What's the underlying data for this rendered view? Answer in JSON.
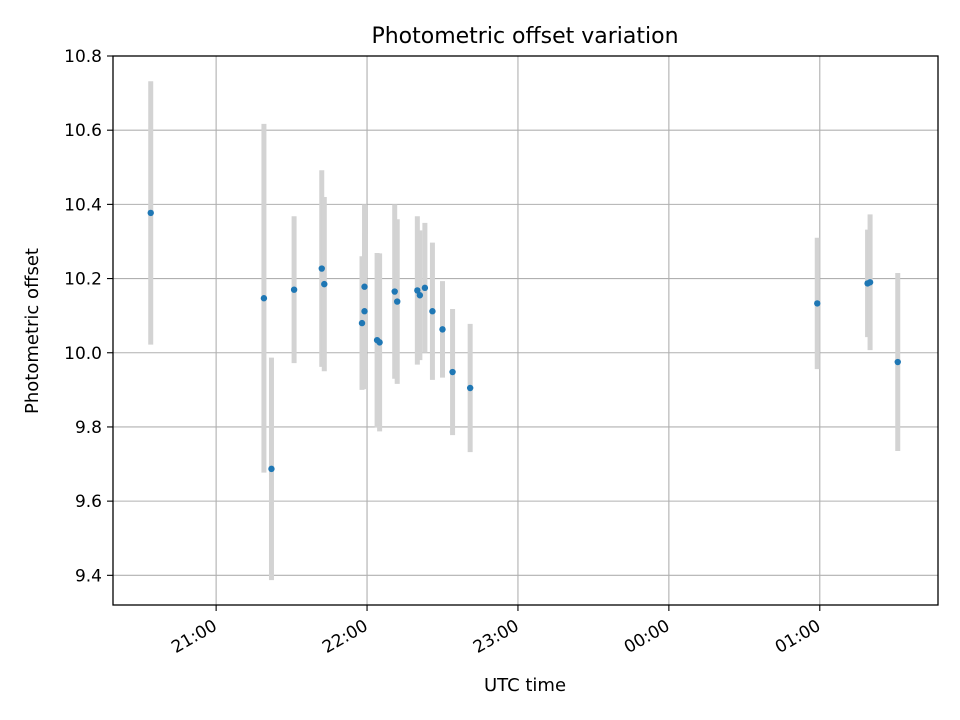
{
  "chart_data": {
    "type": "scatter",
    "title": "Photometric offset variation",
    "xlabel": "UTC time",
    "ylabel": "Photometric offset",
    "x_axis_kind": "time",
    "xlim": [
      "20:19",
      "01:47"
    ],
    "ylim": [
      9.32,
      10.8
    ],
    "x_ticks": [
      "21:00",
      "22:00",
      "23:00",
      "00:00",
      "01:00"
    ],
    "y_ticks": [
      9.4,
      9.6,
      9.8,
      10.0,
      10.2,
      10.4,
      10.6,
      10.8
    ],
    "y_tick_labels": [
      "9.4",
      "9.6",
      "9.8",
      "10.0",
      "10.2",
      "10.4",
      "10.6",
      "10.8"
    ],
    "grid": true,
    "legend": "none",
    "colors": {
      "points": "#1f77b4",
      "errorbars": "#d3d3d3",
      "grid": "#b0b0b0"
    },
    "series": [
      {
        "points": [
          {
            "x": "20:34",
            "y": 10.377,
            "err": 0.355
          },
          {
            "x": "21:19",
            "y": 10.147,
            "err": 0.47
          },
          {
            "x": "21:22",
            "y": 9.687,
            "err": 0.3
          },
          {
            "x": "21:31",
            "y": 10.17,
            "err": 0.198
          },
          {
            "x": "21:42",
            "y": 10.227,
            "err": 0.265
          },
          {
            "x": "21:43",
            "y": 10.185,
            "err": 0.235
          },
          {
            "x": "21:58",
            "y": 10.08,
            "err": 0.18
          },
          {
            "x": "21:59",
            "y": 10.112,
            "err": 0.21
          },
          {
            "x": "21:59",
            "y": 10.178,
            "err": 0.222
          },
          {
            "x": "22:04",
            "y": 10.034,
            "err": 0.235
          },
          {
            "x": "22:05",
            "y": 10.028,
            "err": 0.24
          },
          {
            "x": "22:11",
            "y": 10.165,
            "err": 0.235
          },
          {
            "x": "22:12",
            "y": 10.138,
            "err": 0.222
          },
          {
            "x": "22:20",
            "y": 10.168,
            "err": 0.2
          },
          {
            "x": "22:21",
            "y": 10.155,
            "err": 0.175
          },
          {
            "x": "22:23",
            "y": 10.175,
            "err": 0.175
          },
          {
            "x": "22:26",
            "y": 10.112,
            "err": 0.185
          },
          {
            "x": "22:30",
            "y": 10.063,
            "err": 0.13
          },
          {
            "x": "22:34",
            "y": 9.948,
            "err": 0.17
          },
          {
            "x": "22:41",
            "y": 9.905,
            "err": 0.173
          },
          {
            "x": "00:59",
            "y": 10.133,
            "err": 0.177
          },
          {
            "x": "01:19",
            "y": 10.187,
            "err": 0.145
          },
          {
            "x": "01:20",
            "y": 10.19,
            "err": 0.183
          },
          {
            "x": "01:31",
            "y": 9.975,
            "err": 0.24
          }
        ]
      }
    ]
  }
}
